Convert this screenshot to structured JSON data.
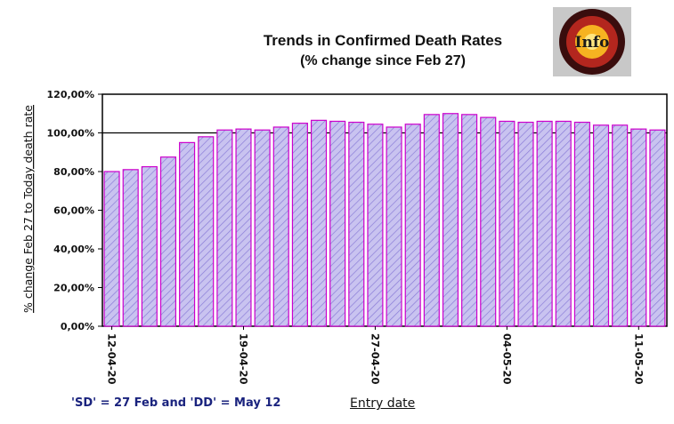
{
  "title": "Trends in Confirmed Death Rates",
  "subtitle": "(% change since Feb 27)",
  "footnote": "'SD' = 27 Feb and 'DD' = May 12",
  "logo": {
    "text": "Info",
    "colors": {
      "outer": "#3a0d0d",
      "ring": "#b3261e",
      "fire": "#f6b321",
      "bg": "#c8c8c8"
    }
  },
  "chart_data": {
    "type": "bar",
    "title": "Trends in Confirmed Death Rates",
    "subtitle": "(% change since Feb 27)",
    "xlabel": "Entry date",
    "ylabel": "% change Feb 27 to Today death rate",
    "ylim": [
      0,
      120
    ],
    "yticks": [
      "0,00%",
      "20,00%",
      "40,00%",
      "60,00%",
      "80,00%",
      "100,00%",
      "120,00%"
    ],
    "ytick_values": [
      0,
      20,
      40,
      60,
      80,
      100,
      120
    ],
    "reference_line": 100,
    "x_ticks": [
      {
        "index": 0,
        "label": "12-04-20"
      },
      {
        "index": 7,
        "label": "19-04-20"
      },
      {
        "index": 14,
        "label": "27-04-20"
      },
      {
        "index": 21,
        "label": "04-05-20"
      },
      {
        "index": 28,
        "label": "11-05-20"
      }
    ],
    "values": [
      80,
      81,
      82.5,
      87.5,
      95,
      98,
      101.5,
      102,
      101.5,
      103,
      105,
      106.5,
      106,
      105.5,
      104.5,
      103,
      104.5,
      109.5,
      110,
      109.5,
      108,
      106,
      105.5,
      106,
      106,
      105.5,
      104,
      104,
      102,
      101.5
    ],
    "bar_fill": "#c9c3f0",
    "bar_hatch": "#8a7dd8",
    "bar_edge": "#cc00cc",
    "grid": false,
    "legend": "none"
  }
}
